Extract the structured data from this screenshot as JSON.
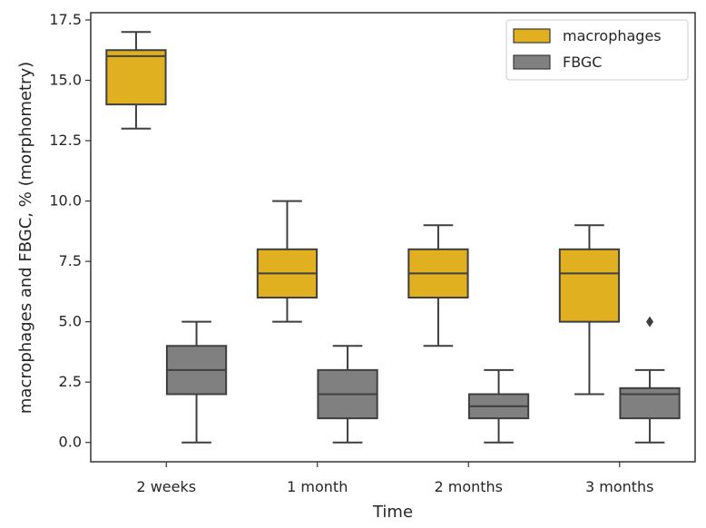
{
  "chart_data": {
    "type": "box",
    "title": "",
    "xlabel": "Time",
    "ylabel": "macrophages and FBGC, % (morphometry)",
    "ylim": [
      -0.8,
      17.8
    ],
    "yticks": [
      0.0,
      2.5,
      5.0,
      7.5,
      10.0,
      12.5,
      15.0,
      17.5
    ],
    "ytick_labels": [
      "0.0",
      "2.5",
      "5.0",
      "7.5",
      "10.0",
      "12.5",
      "15.0",
      "17.5"
    ],
    "categories": [
      "2 weeks",
      "1 month",
      "2 months",
      "3 months"
    ],
    "legend_position": "top-right",
    "series": [
      {
        "name": "macrophages",
        "color": "#e0b020",
        "boxes": [
          {
            "whisker_low": 13,
            "q1": 14,
            "median": 16,
            "q3": 16.25,
            "whisker_high": 17,
            "outliers": []
          },
          {
            "whisker_low": 5,
            "q1": 6,
            "median": 7,
            "q3": 8,
            "whisker_high": 10,
            "outliers": []
          },
          {
            "whisker_low": 4,
            "q1": 6,
            "median": 7,
            "q3": 8,
            "whisker_high": 9,
            "outliers": []
          },
          {
            "whisker_low": 2,
            "q1": 5,
            "median": 7,
            "q3": 8,
            "whisker_high": 9,
            "outliers": []
          }
        ]
      },
      {
        "name": "FBGC",
        "color": "#808080",
        "boxes": [
          {
            "whisker_low": 0,
            "q1": 2,
            "median": 3,
            "q3": 4,
            "whisker_high": 5,
            "outliers": []
          },
          {
            "whisker_low": 0,
            "q1": 1,
            "median": 2,
            "q3": 3,
            "whisker_high": 4,
            "outliers": []
          },
          {
            "whisker_low": 0,
            "q1": 1,
            "median": 1.5,
            "q3": 2,
            "whisker_high": 3,
            "outliers": []
          },
          {
            "whisker_low": 0,
            "q1": 1,
            "median": 2,
            "q3": 2.25,
            "whisker_high": 3,
            "outliers": [
              5
            ]
          }
        ]
      }
    ]
  }
}
